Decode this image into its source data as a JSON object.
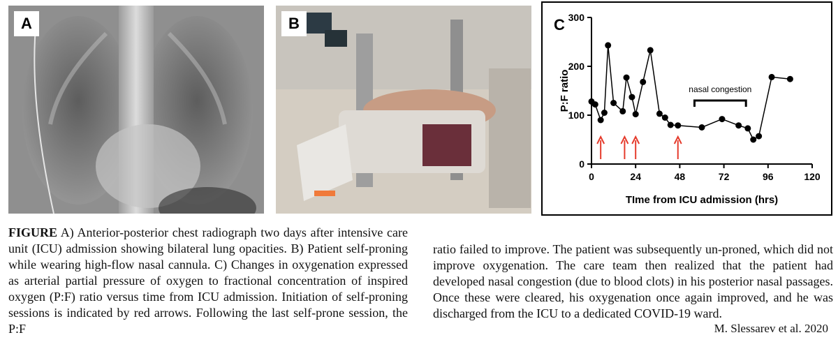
{
  "panels": {
    "a": {
      "label": "A"
    },
    "b": {
      "label": "B"
    },
    "c": {
      "label": "C"
    }
  },
  "chart_data": {
    "type": "line",
    "xlabel": "TIme from ICU admission (hrs)",
    "ylabel": "P:F ratio",
    "xlim": [
      0,
      120
    ],
    "ylim": [
      0,
      300
    ],
    "xticks": [
      0,
      24,
      48,
      72,
      96,
      120
    ],
    "yticks": [
      0,
      100,
      200,
      300
    ],
    "grid": false,
    "points": [
      {
        "x": 0,
        "y": 128
      },
      {
        "x": 2,
        "y": 122
      },
      {
        "x": 5,
        "y": 90
      },
      {
        "x": 7,
        "y": 105
      },
      {
        "x": 9,
        "y": 243
      },
      {
        "x": 12,
        "y": 125
      },
      {
        "x": 17,
        "y": 108
      },
      {
        "x": 19,
        "y": 177
      },
      {
        "x": 22,
        "y": 137
      },
      {
        "x": 24,
        "y": 102
      },
      {
        "x": 28,
        "y": 168
      },
      {
        "x": 32,
        "y": 233
      },
      {
        "x": 37,
        "y": 103
      },
      {
        "x": 40,
        "y": 95
      },
      {
        "x": 43,
        "y": 80
      },
      {
        "x": 47,
        "y": 79
      },
      {
        "x": 60,
        "y": 75
      },
      {
        "x": 71,
        "y": 92
      },
      {
        "x": 80,
        "y": 79
      },
      {
        "x": 85,
        "y": 73
      },
      {
        "x": 88,
        "y": 50
      },
      {
        "x": 91,
        "y": 57
      },
      {
        "x": 98,
        "y": 178
      },
      {
        "x": 108,
        "y": 174
      }
    ],
    "arrows_x": [
      5,
      18,
      24,
      47
    ],
    "arrow_color": "#e53b2c",
    "annotation": {
      "text": "nasal congestion",
      "x_start": 56,
      "x_end": 84,
      "y": 130
    }
  },
  "caption": {
    "figure_word": "FIGURE",
    "left_text": " A) Anterior-posterior chest radiograph two days after intensive care unit (ICU) admission showing bilateral lung opacities. B) Patient self-proning while wearing high-flow nasal cannula. C) Changes in oxygenation expressed as arterial partial pressure of oxygen to fractional concentration of inspired oxygen (P:F) ratio versus time from ICU admission. Initiation of self-proning sessions is indicated by red arrows. Following the last self-prone session, the P:F",
    "right_text": "ratio failed to improve. The patient was subsequently un-proned, which did not improve oxygenation. The care team then realized that the patient had developed nasal congestion (due to blood clots) in his posterior nasal passages. Once these were cleared, his oxygenation once again improved, and he was discharged from the ICU to a dedicated COVID-19 ward.",
    "credit": "M. Slessarev et al. 2020"
  }
}
